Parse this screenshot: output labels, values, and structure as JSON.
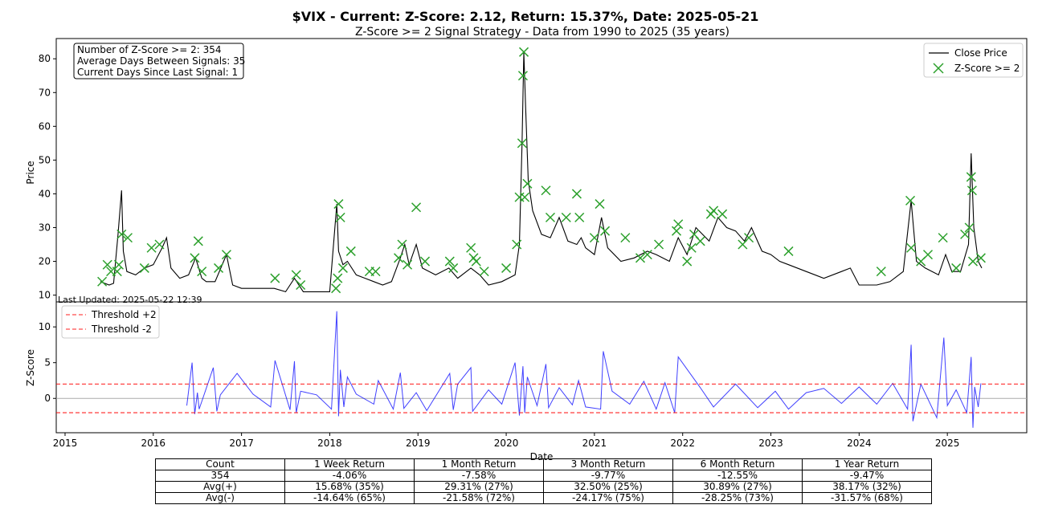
{
  "title": "$VIX - Current: Z-Score: 2.12, Return: 15.37%, Date: 2025-05-21",
  "subtitle": "Z-Score >= 2 Signal Strategy - Data from 1990 to 2025 (35 years)",
  "info_box": [
    "Number of Z-Score >= 2: 354",
    "Average Days Between Signals: 35",
    "Current Days Since Last Signal: 1"
  ],
  "last_updated": "Last Updated: 2025-05-22 12:39",
  "colors": {
    "price": "#000000",
    "signal": "#2ca02c",
    "zscore": "#0000ff",
    "threshold": "#ff0000",
    "zero": "#aaaaaa"
  },
  "chart_data": [
    {
      "type": "line",
      "ylabel": "Price",
      "ylim": [
        8,
        86
      ],
      "xlim": [
        2014.9,
        2025.9
      ],
      "yticks": [
        10,
        20,
        30,
        40,
        50,
        60,
        70,
        80
      ],
      "legend": {
        "placement": "top-right",
        "entries": [
          "Close Price",
          "Z-Score >= 2"
        ]
      },
      "series": [
        {
          "name": "Close Price",
          "x": [
            2015.4,
            2015.5,
            2015.55,
            2015.6,
            2015.64,
            2015.66,
            2015.7,
            2015.8,
            2015.9,
            2016.0,
            2016.1,
            2016.15,
            2016.2,
            2016.3,
            2016.4,
            2016.48,
            2016.55,
            2016.6,
            2016.7,
            2016.83,
            2016.9,
            2017.0,
            2017.2,
            2017.37,
            2017.5,
            2017.6,
            2017.7,
            2017.9,
            2018.0,
            2018.08,
            2018.1,
            2018.15,
            2018.2,
            2018.3,
            2018.4,
            2018.5,
            2018.6,
            2018.7,
            2018.8,
            2018.85,
            2018.9,
            2018.98,
            2019.05,
            2019.2,
            2019.35,
            2019.45,
            2019.6,
            2019.7,
            2019.8,
            2019.95,
            2020.1,
            2020.15,
            2020.18,
            2020.2,
            2020.22,
            2020.25,
            2020.3,
            2020.4,
            2020.5,
            2020.6,
            2020.7,
            2020.8,
            2020.85,
            2020.9,
            2021.0,
            2021.08,
            2021.15,
            2021.3,
            2021.45,
            2021.6,
            2021.7,
            2021.85,
            2021.95,
            2022.05,
            2022.15,
            2022.3,
            2022.4,
            2022.5,
            2022.6,
            2022.7,
            2022.78,
            2022.9,
            2023.0,
            2023.1,
            2023.2,
            2023.4,
            2023.6,
            2023.8,
            2023.9,
            2024.0,
            2024.2,
            2024.35,
            2024.5,
            2024.59,
            2024.65,
            2024.75,
            2024.9,
            2024.98,
            2025.05,
            2025.15,
            2025.24,
            2025.27,
            2025.3,
            2025.35,
            2025.39
          ],
          "values": [
            14,
            13,
            13.5,
            28,
            41,
            23,
            17,
            16,
            18,
            19,
            24,
            27,
            18,
            15,
            16,
            21,
            15,
            14,
            14,
            22,
            13,
            12,
            12,
            12,
            11,
            15,
            11,
            11,
            11,
            37,
            23,
            19,
            20,
            16,
            15,
            14,
            13,
            14,
            21,
            25,
            19,
            25,
            18,
            16,
            18,
            15,
            18,
            16,
            13,
            14,
            16,
            25,
            55,
            82,
            66,
            44,
            35,
            28,
            27,
            33,
            26,
            25,
            27,
            24,
            22,
            33,
            24,
            20,
            21,
            23,
            22,
            20,
            27,
            22,
            30,
            26,
            33,
            30,
            29,
            26,
            30,
            23,
            22,
            20,
            19,
            17,
            15,
            17,
            18,
            13,
            13,
            14,
            17,
            38,
            20,
            18,
            16,
            22,
            17,
            17,
            25,
            52,
            30,
            20,
            18
          ]
        }
      ],
      "signals_x": [
        2015.42,
        2015.48,
        2015.52,
        2015.59,
        2015.61,
        2015.64,
        2015.71,
        2015.9,
        2015.98,
        2016.07,
        2016.47,
        2016.51,
        2016.55,
        2016.74,
        2016.83,
        2017.38,
        2017.62,
        2017.67,
        2018.07,
        2018.09,
        2018.1,
        2018.12,
        2018.15,
        2018.24,
        2018.45,
        2018.52,
        2018.78,
        2018.82,
        2018.88,
        2018.98,
        2019.08,
        2019.36,
        2019.4,
        2019.6,
        2019.63,
        2019.66,
        2019.75,
        2020.0,
        2020.12,
        2020.15,
        2020.18,
        2020.19,
        2020.2,
        2020.21,
        2020.24,
        2020.45,
        2020.5,
        2020.68,
        2020.8,
        2020.83,
        2021.0,
        2021.06,
        2021.12,
        2021.35,
        2021.52,
        2021.6,
        2021.73,
        2021.93,
        2021.95,
        2022.05,
        2022.1,
        2022.13,
        2022.2,
        2022.32,
        2022.35,
        2022.45,
        2022.68,
        2022.75,
        2023.2,
        2024.25,
        2024.58,
        2024.59,
        2024.7,
        2024.78,
        2024.95,
        2025.1,
        2025.2,
        2025.25,
        2025.27,
        2025.28,
        2025.29,
        2025.38
      ],
      "signals_y": [
        14,
        19,
        17,
        17,
        19,
        28,
        27,
        18,
        24,
        25,
        21,
        26,
        17,
        18,
        22,
        15,
        16,
        13,
        12,
        15,
        37,
        33,
        18,
        23,
        17,
        17,
        21,
        25,
        19,
        36,
        20,
        20,
        18,
        24,
        21,
        20,
        17,
        18,
        25,
        39,
        55,
        75,
        82,
        39,
        43,
        41,
        33,
        33,
        40,
        33,
        27,
        37,
        29,
        27,
        21,
        22,
        25,
        29,
        31,
        20,
        24,
        28,
        26,
        34,
        35,
        34,
        25,
        27,
        23,
        17,
        38,
        24,
        20,
        22,
        27,
        18,
        28,
        30,
        45,
        41,
        20,
        21
      ]
    },
    {
      "type": "line",
      "xlabel": "Date",
      "ylabel": "Z-Score",
      "ylim": [
        -4.8,
        13.5
      ],
      "xlim": [
        2014.9,
        2025.9
      ],
      "yticks": [
        0,
        5,
        10
      ],
      "xticks": [
        "2015",
        "2016",
        "2017",
        "2018",
        "2019",
        "2020",
        "2021",
        "2022",
        "2023",
        "2024",
        "2025"
      ],
      "thresholds": [
        2,
        -2
      ],
      "legend": {
        "placement": "top-left",
        "entries": [
          "Threshold +2",
          "Threshold -2"
        ]
      },
      "series": [
        {
          "name": "Z-Score",
          "x": [
            2016.38,
            2016.44,
            2016.47,
            2016.5,
            2016.52,
            2016.68,
            2016.72,
            2016.76,
            2016.95,
            2017.13,
            2017.33,
            2017.38,
            2017.55,
            2017.6,
            2017.62,
            2017.67,
            2017.85,
            2018.02,
            2018.08,
            2018.1,
            2018.12,
            2018.16,
            2018.2,
            2018.3,
            2018.5,
            2018.55,
            2018.72,
            2018.8,
            2018.84,
            2018.98,
            2019.1,
            2019.36,
            2019.4,
            2019.45,
            2019.6,
            2019.62,
            2019.8,
            2019.95,
            2020.1,
            2020.15,
            2020.19,
            2020.21,
            2020.24,
            2020.35,
            2020.45,
            2020.48,
            2020.6,
            2020.75,
            2020.82,
            2020.9,
            2021.07,
            2021.1,
            2021.2,
            2021.4,
            2021.56,
            2021.7,
            2021.8,
            2021.91,
            2021.95,
            2022.2,
            2022.35,
            2022.6,
            2022.85,
            2023.05,
            2023.2,
            2023.4,
            2023.6,
            2023.8,
            2024.0,
            2024.2,
            2024.38,
            2024.55,
            2024.59,
            2024.61,
            2024.7,
            2024.88,
            2024.96,
            2025.0,
            2025.1,
            2025.22,
            2025.27,
            2025.29,
            2025.31,
            2025.35,
            2025.38
          ],
          "values": [
            -1,
            5,
            -2.2,
            0.8,
            -1.5,
            4.3,
            -1.8,
            0.5,
            3.5,
            0.6,
            -1.2,
            5.3,
            -1.6,
            5.2,
            -2,
            1,
            0.5,
            -1.5,
            12.2,
            -2.5,
            4,
            -1.2,
            3,
            0.6,
            -0.8,
            2.5,
            -1.5,
            3.6,
            -1.4,
            0.8,
            -1.7,
            3.5,
            -1.6,
            2,
            4.3,
            -1.8,
            1.2,
            -0.8,
            5,
            -2.4,
            4.5,
            -2,
            3,
            -1,
            4.8,
            -1.3,
            1.5,
            -0.9,
            2.5,
            -1.2,
            -1.5,
            6.6,
            1,
            -0.8,
            2.4,
            -1.5,
            2.2,
            -2,
            5.8,
            1.5,
            -1.2,
            2,
            -1.3,
            1,
            -1.5,
            0.8,
            1.4,
            -0.7,
            1.6,
            -0.8,
            2.1,
            -1.5,
            7.5,
            -3.2,
            2,
            -2.7,
            8.5,
            -1,
            1.2,
            -2,
            5.8,
            -4.1,
            1.6,
            -1.2,
            2.1
          ]
        }
      ]
    }
  ],
  "table": {
    "headers": [
      "Count",
      "1 Week Return",
      "1 Month Return",
      "3 Month Return",
      "6 Month Return",
      "1 Year Return"
    ],
    "rows": [
      [
        "354",
        "-4.06%",
        "-7.58%",
        "-9.77%",
        "-12.55%",
        "-9.47%"
      ],
      [
        "Avg(+)",
        "15.68% (35%)",
        "29.31% (27%)",
        "32.50% (25%)",
        "30.89% (27%)",
        "38.17% (32%)"
      ],
      [
        "Avg(-)",
        "-14.64% (65%)",
        "-21.58% (72%)",
        "-24.17% (75%)",
        "-28.25% (73%)",
        "-31.57% (68%)"
      ]
    ]
  }
}
